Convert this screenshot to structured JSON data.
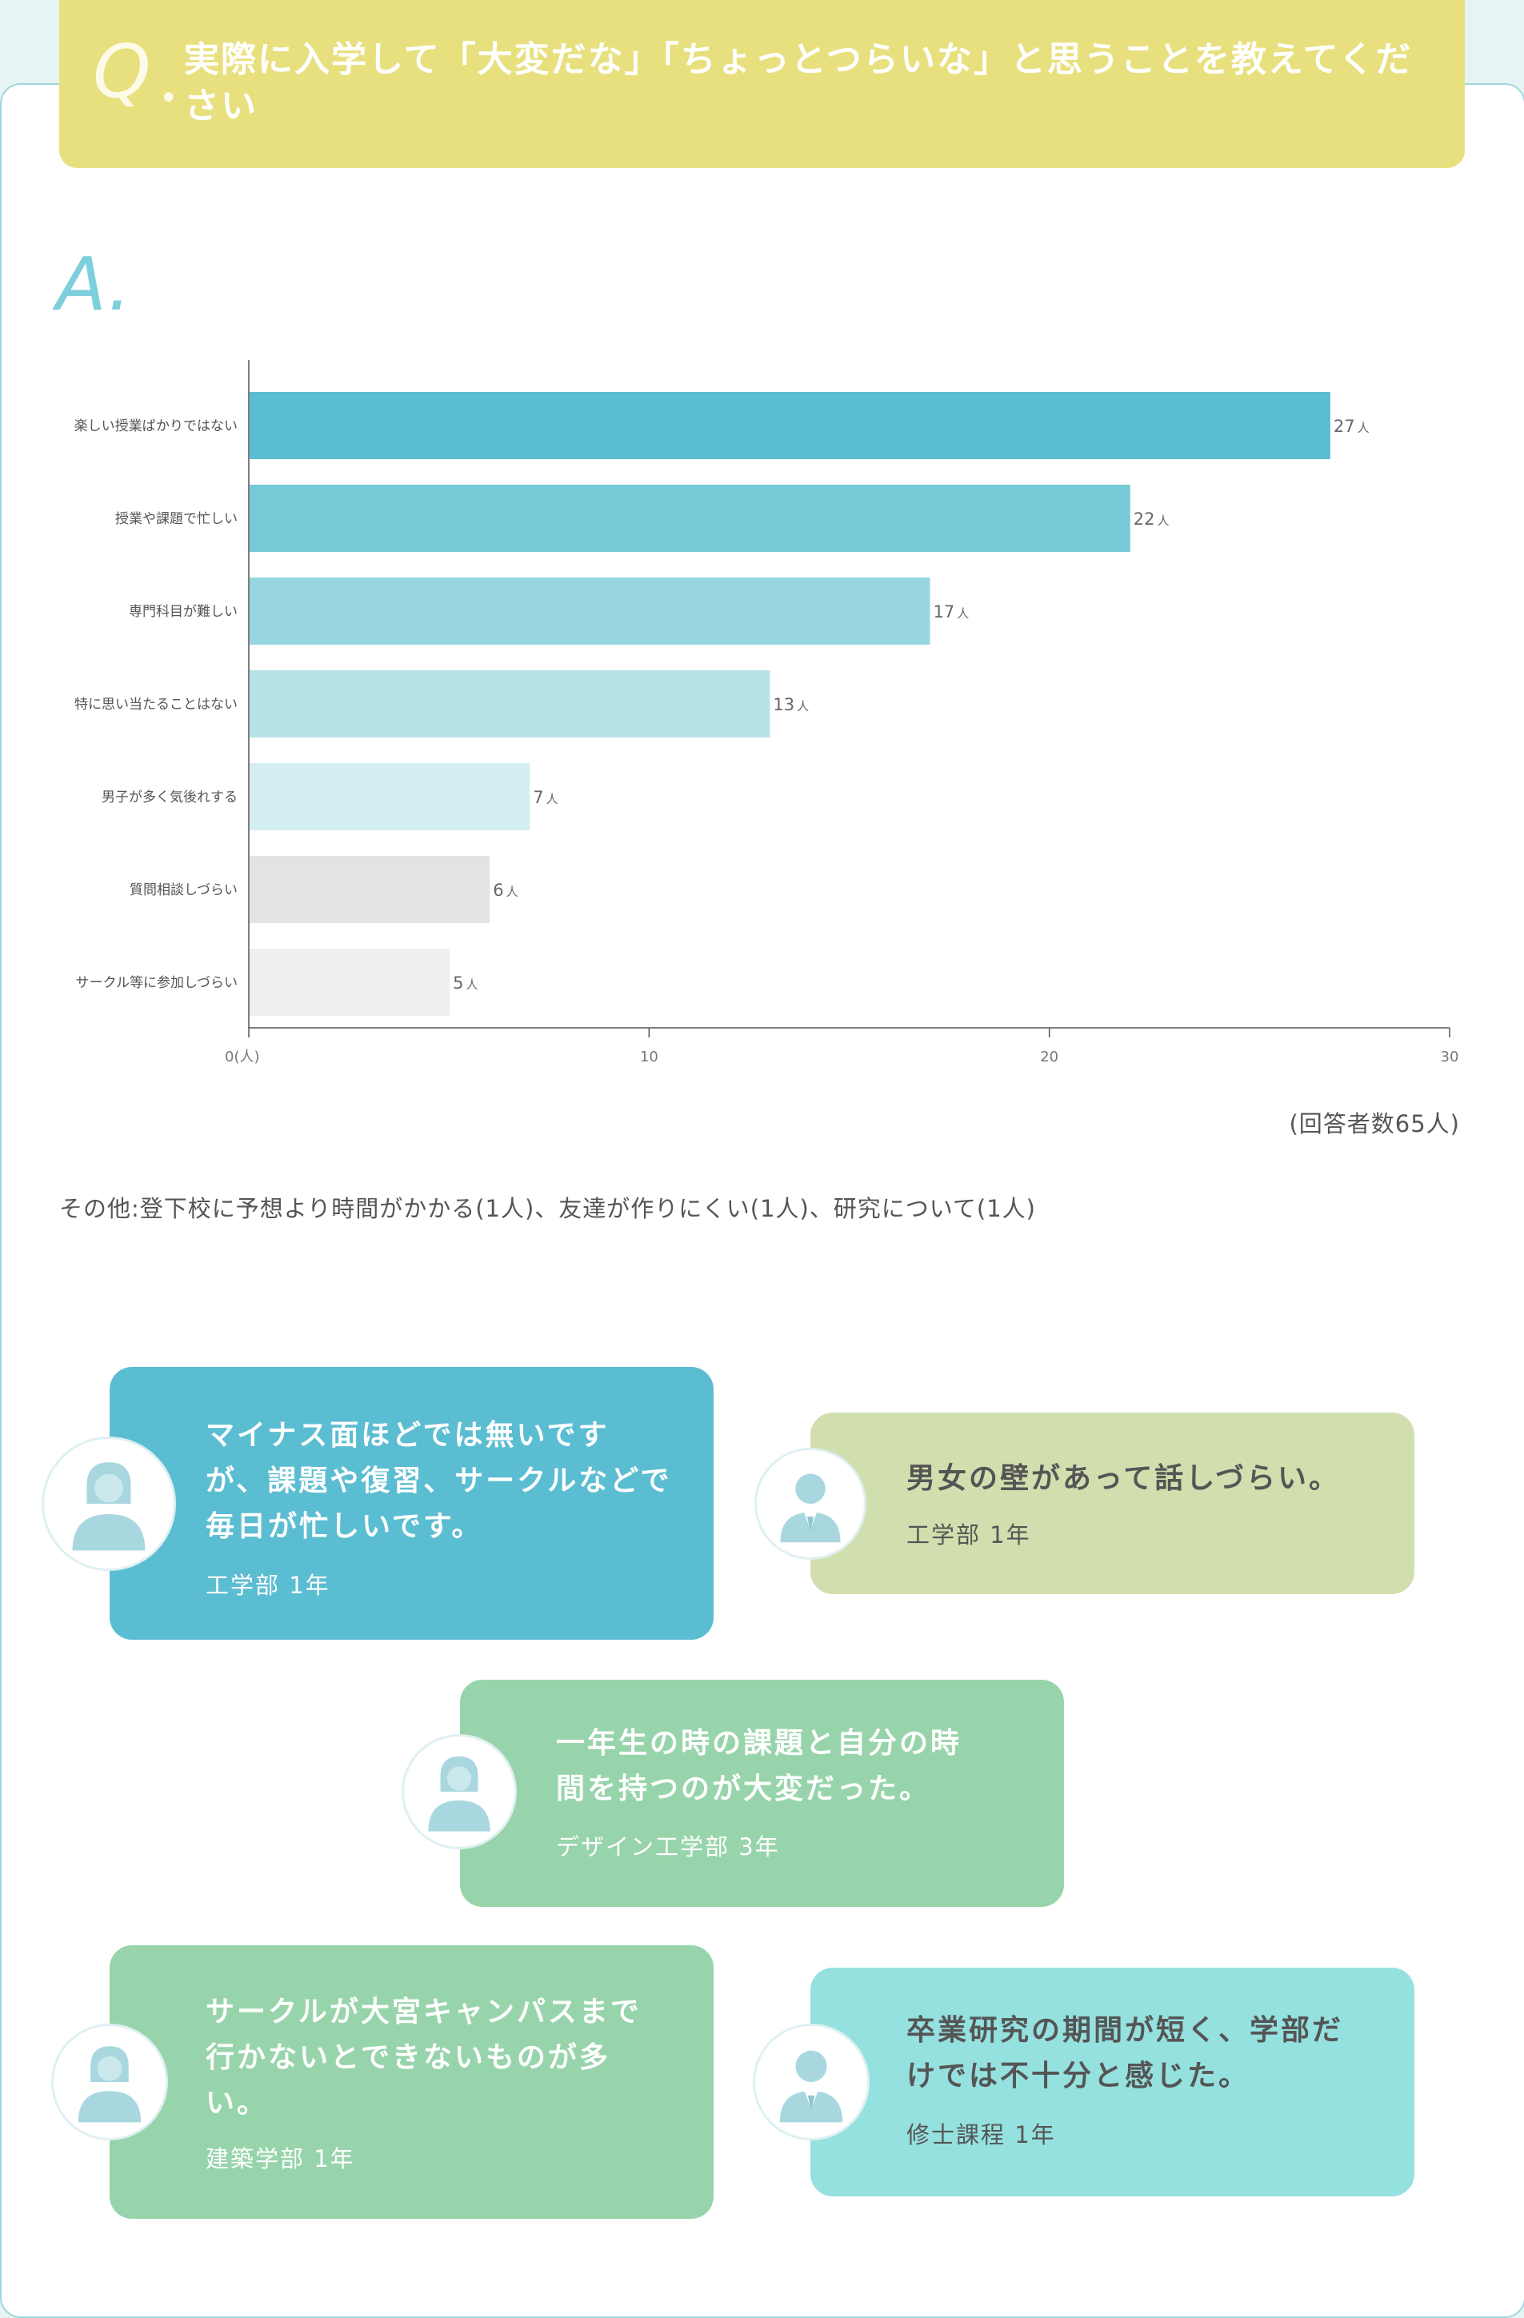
{
  "question": {
    "mark": "Q",
    "text": "実際に入学して「大変だな」「ちょっとつらいな」と思うことを教えてください"
  },
  "answer_mark": "A.",
  "chart_data": {
    "type": "bar",
    "orientation": "horizontal",
    "categories": [
      "楽しい授業ばかりではない",
      "授業や課題で忙しい",
      "専門科目が難しい",
      "特に思い当たることはない",
      "男子が多く気後れする",
      "質問相談しづらい",
      "サークル等に参加しづらい"
    ],
    "values": [
      27,
      22,
      17,
      13,
      7,
      6,
      5
    ],
    "value_unit": "人",
    "xlim": [
      0,
      30
    ],
    "xticks": [
      "0(人)",
      "10",
      "20",
      "30"
    ],
    "colors": [
      "#5bbdd0",
      "#78c9d7",
      "#98d6e0",
      "#b6e2e8",
      "#d5eef1",
      "#e3e3e3",
      "#efefef"
    ],
    "grid": false
  },
  "respondents": "(回答者数65人)",
  "other_note": "その他:登下校に予想より時間がかかる(1人)、友達が作りにくい(1人)、研究について(1人)",
  "comments": [
    {
      "lines": [
        "マイナス面ほどでは無いです",
        "が、課題や復習、サークルなどで",
        "毎日が忙しいです。"
      ],
      "meta": "工学部 1年",
      "color": "#5bbdd1",
      "text_color": "#ffffff",
      "avatar": "female-student-icon"
    },
    {
      "lines": [
        "男女の壁があって話しづらい。"
      ],
      "meta": "工学部 1年",
      "color": "#d1dfaf",
      "text_color": "#555555",
      "avatar": "male-student-icon"
    },
    {
      "lines": [
        "一年生の時の課題と自分の時",
        "間を持つのが大変だった。"
      ],
      "meta": "デザイン工学部 3年",
      "color": "#98d4ab",
      "text_color": "#ffffff",
      "avatar": "female-student-icon"
    },
    {
      "lines": [
        "サークルが大宮キャンパスまで",
        "行かないとできないものが多",
        "い。"
      ],
      "meta": "建築学部 1年",
      "color": "#98d4ab",
      "text_color": "#ffffff",
      "avatar": "female-student-icon"
    },
    {
      "lines": [
        "卒業研究の期間が短く、学部だ",
        "けでは不十分と感じた。"
      ],
      "meta": "修士課程 1年",
      "color": "#95e1df",
      "text_color": "#555555",
      "avatar": "male-student-icon"
    }
  ]
}
